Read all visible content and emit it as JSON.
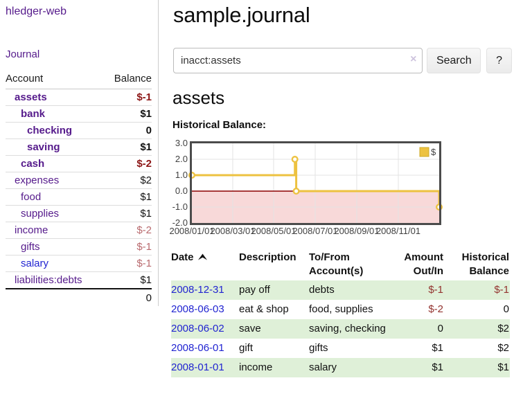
{
  "app": {
    "title": "hledger-web"
  },
  "sidebar": {
    "journal_link": "Journal",
    "header": {
      "account": "Account",
      "balance": "Balance"
    },
    "accounts": [
      {
        "name": "assets",
        "balance": "$-1"
      },
      {
        "name": "bank",
        "balance": "$1"
      },
      {
        "name": "checking",
        "balance": "0"
      },
      {
        "name": "saving",
        "balance": "$1"
      },
      {
        "name": "cash",
        "balance": "$-2"
      },
      {
        "name": "expenses",
        "balance": "$2"
      },
      {
        "name": "food",
        "balance": "$1"
      },
      {
        "name": "supplies",
        "balance": "$1"
      },
      {
        "name": "income",
        "balance": "$-2"
      },
      {
        "name": "gifts",
        "balance": "$-1"
      },
      {
        "name": "salary",
        "balance": "$-1"
      },
      {
        "name": "liabilities:debts",
        "balance": "$1"
      }
    ],
    "total": "0"
  },
  "main": {
    "title": "sample.journal",
    "search": {
      "value": "inacct:assets",
      "clear_icon": "×",
      "search_label": "Search",
      "help_label": "?"
    },
    "account_title": "assets",
    "chart_heading": "Historical Balance:"
  },
  "chart_data": {
    "type": "line",
    "title": "Historical Balance",
    "step": "after",
    "series": [
      {
        "name": "$",
        "color": "#edc240",
        "points": [
          [
            "2008-01-01",
            1
          ],
          [
            "2008-06-01",
            2
          ],
          [
            "2008-06-03",
            0
          ],
          [
            "2008-12-31",
            -1
          ]
        ]
      }
    ],
    "x_range": [
      "2008-01-01",
      "2008-12-31"
    ],
    "ylim": [
      -2,
      3
    ],
    "y_tick_labels": [
      "3.0",
      "2.0",
      "1.0",
      "0.0",
      "-1.0",
      "-2.0"
    ],
    "x_ticks": [
      "2008/01/01",
      "2008/03/01",
      "2008/05/01",
      "2008/07/01",
      "2008/09/01",
      "2008/11/01"
    ],
    "grid": true,
    "zero_line_color": "#8b0000",
    "negative_region_color": "#f8d9d9",
    "legend": {
      "label": "$",
      "position": "top-right"
    }
  },
  "register": {
    "headers": {
      "date": "Date",
      "description": "Description",
      "accounts": "To/From Account(s)",
      "amount": "Amount Out/In",
      "balance": "Historical Balance"
    },
    "rows": [
      {
        "date": "2008-12-31",
        "description": "pay off",
        "accounts": "debts",
        "amount": "$-1",
        "balance": "$-1"
      },
      {
        "date": "2008-06-03",
        "description": "eat & shop",
        "accounts": "food, supplies",
        "amount": "$-2",
        "balance": "0"
      },
      {
        "date": "2008-06-02",
        "description": "save",
        "accounts": "saving, checking",
        "amount": "0",
        "balance": "$2"
      },
      {
        "date": "2008-06-01",
        "description": "gift",
        "accounts": "gifts",
        "amount": "$1",
        "balance": "$2"
      },
      {
        "date": "2008-01-01",
        "description": "income",
        "accounts": "salary",
        "amount": "$1",
        "balance": "$1"
      }
    ]
  }
}
